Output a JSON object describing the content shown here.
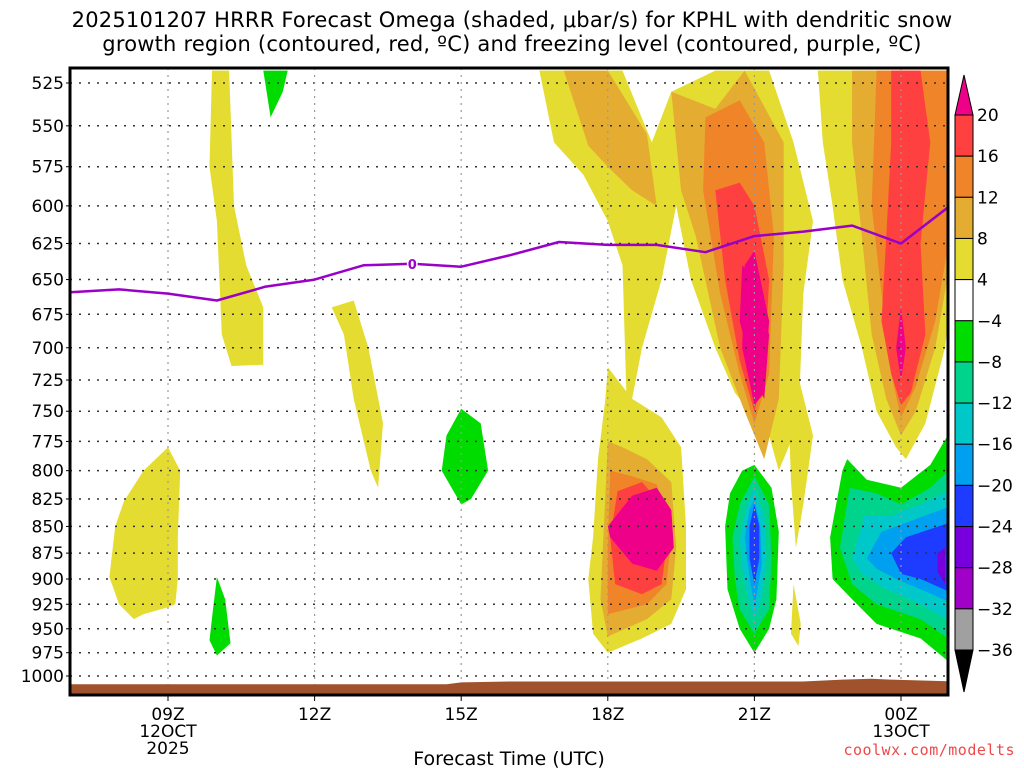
{
  "chart_data": {
    "type": "heatmap",
    "title_line1": "2025101207 HRRR Forecast Omega (shaded, μbar/s) for KPHL with dendritic snow",
    "title_line2": "growth region (contoured, red, ºC) and freezing level (contoured, purple, ºC)",
    "xlabel": "Forecast Time (UTC)",
    "ylabel": "",
    "x_unit": "hours since 2025-10-12 00Z",
    "xlim": [
      7,
      25
    ],
    "x_ticks": [
      {
        "value": 9,
        "lines": [
          "09Z",
          "12OCT",
          "2025"
        ]
      },
      {
        "value": 12,
        "lines": [
          "12Z"
        ]
      },
      {
        "value": 15,
        "lines": [
          "15Z"
        ]
      },
      {
        "value": 18,
        "lines": [
          "18Z"
        ]
      },
      {
        "value": 21,
        "lines": [
          "21Z"
        ]
      },
      {
        "value": 24,
        "lines": [
          "00Z",
          "13OCT"
        ]
      }
    ],
    "y_unit": "hPa",
    "ylim": [
      1015,
      518
    ],
    "y_ticks": [
      525,
      550,
      575,
      600,
      625,
      650,
      675,
      700,
      725,
      750,
      775,
      800,
      825,
      850,
      875,
      900,
      925,
      950,
      975,
      1000
    ],
    "grid": true,
    "colorbar": {
      "placement": "right",
      "levels": [
        -36,
        -32,
        -28,
        -24,
        -20,
        -16,
        -12,
        -8,
        -4,
        4,
        8,
        12,
        16,
        20
      ],
      "labels": [
        "20",
        "16",
        "12",
        "8",
        "4",
        "−4",
        "−8",
        "−12",
        "−16",
        "−20",
        "−24",
        "−28",
        "−32",
        "−36"
      ],
      "colors": [
        {
          "range": ">20",
          "color": "#ee0088"
        },
        {
          "range": "16 to 20",
          "color": "#ff4040"
        },
        {
          "range": "12 to 16",
          "color": "#f08428"
        },
        {
          "range": "8 to 12",
          "color": "#e4ac30"
        },
        {
          "range": "4 to 8",
          "color": "#e4dc30"
        },
        {
          "range": "-4 to 4",
          "color": "#ffffff"
        },
        {
          "range": "-8 to -4",
          "color": "#00dc00"
        },
        {
          "range": "-12 to -8",
          "color": "#00d48c"
        },
        {
          "range": "-16 to -12",
          "color": "#00c8c8"
        },
        {
          "range": "-20 to -16",
          "color": "#00a0f0"
        },
        {
          "range": "-24 to -20",
          "color": "#1e3cff"
        },
        {
          "range": "-28 to -24",
          "color": "#7800dc"
        },
        {
          "range": "-32 to -28",
          "color": "#a000c8"
        },
        {
          "range": "-36 to -32",
          "color": "#a0a0a0"
        },
        {
          "range": "<-36",
          "color": "#000000"
        }
      ]
    },
    "shaded_regions": [
      {
        "name": "upper-left-lift-band",
        "level": "4 to 8",
        "color": "#e4dc30",
        "outline": [
          [
            9.9,
            518
          ],
          [
            10.25,
            518
          ],
          [
            10.35,
            600
          ],
          [
            10.6,
            640
          ],
          [
            10.95,
            670
          ],
          [
            10.95,
            713
          ],
          [
            10.3,
            714
          ],
          [
            10.1,
            690
          ],
          [
            10.0,
            610
          ],
          [
            9.85,
            575
          ]
        ]
      },
      {
        "name": "upper-left-sink-wedge",
        "level": "-8 to -4",
        "color": "#00dc00",
        "outline": [
          [
            10.95,
            518
          ],
          [
            11.45,
            518
          ],
          [
            11.35,
            530
          ],
          [
            11.1,
            545
          ]
        ]
      },
      {
        "name": "lower-left-lift",
        "level": "4 to 8",
        "color": "#e4dc30",
        "outline": [
          [
            8.3,
            940
          ],
          [
            8.0,
            925
          ],
          [
            7.8,
            898
          ],
          [
            7.92,
            850
          ],
          [
            8.1,
            827
          ],
          [
            8.5,
            800
          ],
          [
            9.0,
            780
          ],
          [
            9.25,
            800
          ],
          [
            9.2,
            860
          ],
          [
            9.2,
            900
          ],
          [
            9.15,
            925
          ],
          [
            9.0,
            928
          ],
          [
            8.5,
            935
          ]
        ]
      },
      {
        "name": "lower-left-sink",
        "level": "-8 to -4",
        "color": "#00dc00",
        "outline": [
          [
            10.0,
            898
          ],
          [
            10.17,
            920
          ],
          [
            10.28,
            965
          ],
          [
            10.0,
            978
          ],
          [
            9.85,
            962
          ],
          [
            9.92,
            930
          ]
        ]
      },
      {
        "name": "mid-left-lift",
        "level": "4 to 8",
        "color": "#e4dc30",
        "outline": [
          [
            12.35,
            670
          ],
          [
            12.8,
            665
          ],
          [
            13.1,
            700
          ],
          [
            13.4,
            760
          ],
          [
            13.3,
            815
          ],
          [
            13.15,
            800
          ],
          [
            12.8,
            740
          ],
          [
            12.6,
            690
          ]
        ]
      },
      {
        "name": "mid-sink-blob",
        "level": "-8 to -4",
        "color": "#00dc00",
        "outline": [
          [
            15.0,
            748
          ],
          [
            15.4,
            760
          ],
          [
            15.55,
            800
          ],
          [
            15.2,
            825
          ],
          [
            15.0,
            830
          ],
          [
            14.6,
            800
          ],
          [
            14.7,
            770
          ]
        ]
      },
      {
        "name": "18Z-lower-lift-core",
        "level": ">20",
        "color": "#ee0088",
        "outline": [
          [
            18.0,
            850
          ],
          [
            18.5,
            822
          ],
          [
            19.0,
            815
          ],
          [
            19.3,
            835
          ],
          [
            19.35,
            870
          ],
          [
            19.0,
            892
          ],
          [
            18.5,
            885
          ],
          [
            18.05,
            860
          ]
        ]
      },
      {
        "name": "21Z-lower-sink-core",
        "level": "-24 to -20",
        "color": "#1e3cff",
        "outline": [
          [
            21.0,
            830
          ],
          [
            21.1,
            850
          ],
          [
            21.1,
            880
          ],
          [
            21.0,
            905
          ],
          [
            20.9,
            880
          ],
          [
            20.9,
            850
          ]
        ]
      },
      {
        "name": "21Z-upper-lift-core",
        "level": ">20",
        "color": "#ee0088",
        "outline": [
          [
            21.0,
            650
          ],
          [
            21.3,
            690
          ],
          [
            21.2,
            740
          ],
          [
            21.0,
            725
          ],
          [
            20.7,
            680
          ],
          [
            20.75,
            640
          ]
        ]
      },
      {
        "name": "00Z-upper-lift-core",
        "level": ">20",
        "color": "#ee0088",
        "outline": [
          [
            24.0,
            670
          ],
          [
            24.1,
            700
          ],
          [
            24.0,
            725
          ],
          [
            23.9,
            700
          ]
        ]
      },
      {
        "name": "00Z-lower-sink-core",
        "level": "-28 to -24",
        "color": "#7800dc",
        "outline": [
          [
            24.75,
            875
          ],
          [
            24.9,
            870
          ],
          [
            24.9,
            905
          ],
          [
            24.75,
            893
          ]
        ]
      }
    ],
    "freezing_level": {
      "label": "0",
      "color": "#9a00c8",
      "points": [
        [
          7,
          659
        ],
        [
          8,
          657
        ],
        [
          9,
          660
        ],
        [
          10,
          665
        ],
        [
          11,
          655
        ],
        [
          12,
          650
        ],
        [
          13,
          640
        ],
        [
          14,
          639
        ],
        [
          15,
          641
        ],
        [
          16,
          633
        ],
        [
          17,
          624
        ],
        [
          18,
          626
        ],
        [
          19,
          626
        ],
        [
          20,
          631
        ],
        [
          21,
          620
        ],
        [
          22,
          617
        ],
        [
          23,
          613
        ],
        [
          24,
          625
        ],
        [
          25,
          600
        ]
      ]
    },
    "terrain": {
      "color": "#a0522d"
    }
  },
  "credit": "coolwx.com/modelts"
}
